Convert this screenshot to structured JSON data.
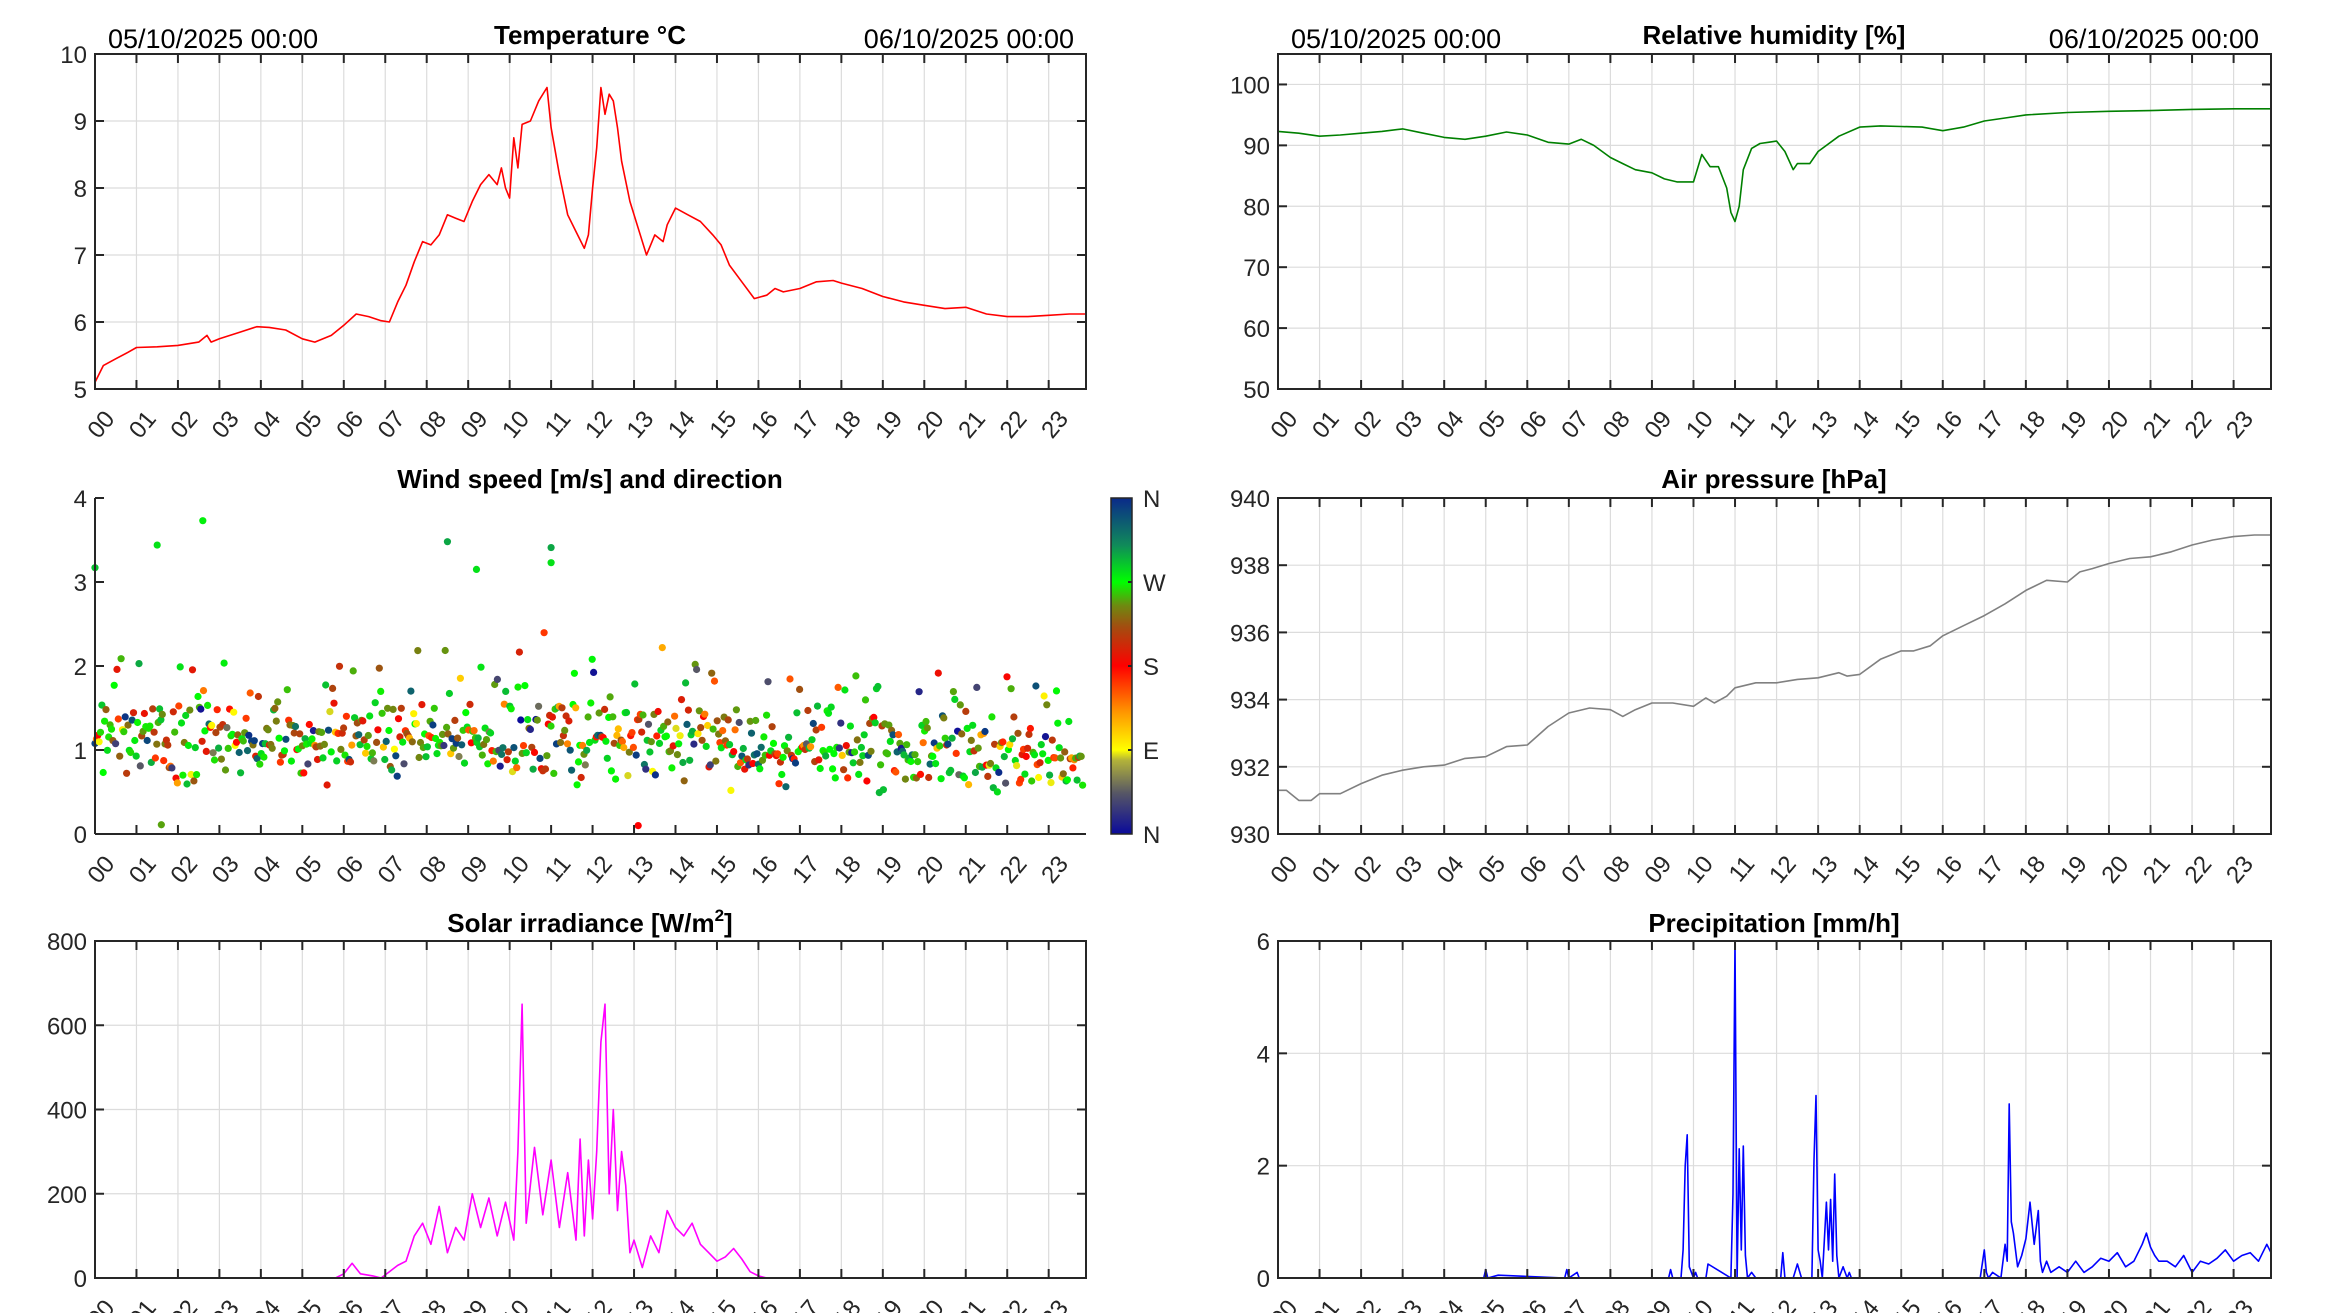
{
  "page": {
    "start_stamp": "05/10/2025 00:00",
    "end_stamp": "06/10/2025 00:00"
  },
  "x_tick_labels": [
    "00",
    "01",
    "02",
    "03",
    "04",
    "05",
    "06",
    "07",
    "08",
    "09",
    "10",
    "11",
    "12",
    "13",
    "14",
    "15",
    "16",
    "17",
    "18",
    "19",
    "20",
    "21",
    "22",
    "23"
  ],
  "chart_data": [
    {
      "id": "temperature",
      "type": "line",
      "title": "Temperature °C",
      "xlabel": "hour",
      "ylabel": "",
      "xlim": [
        0,
        23.9
      ],
      "ylim": [
        5,
        10
      ],
      "yticks": [
        5,
        6,
        7,
        8,
        9,
        10
      ],
      "grid": true,
      "color": "#ff0000",
      "x": [
        0,
        0.2,
        0.5,
        0.8,
        1.0,
        1.5,
        2.0,
        2.5,
        2.7,
        2.8,
        3.0,
        3.5,
        3.9,
        4.2,
        4.6,
        5.0,
        5.3,
        5.7,
        6.0,
        6.3,
        6.6,
        6.9,
        7.1,
        7.3,
        7.5,
        7.7,
        7.9,
        8.1,
        8.3,
        8.5,
        8.7,
        8.9,
        9.1,
        9.3,
        9.5,
        9.7,
        9.8,
        9.9,
        10.0,
        10.1,
        10.2,
        10.3,
        10.5,
        10.7,
        10.9,
        11.0,
        11.2,
        11.4,
        11.6,
        11.8,
        11.9,
        12.0,
        12.1,
        12.2,
        12.3,
        12.4,
        12.5,
        12.6,
        12.7,
        12.9,
        13.1,
        13.3,
        13.5,
        13.7,
        13.8,
        14.0,
        14.3,
        14.6,
        14.9,
        15.1,
        15.3,
        15.6,
        15.9,
        16.2,
        16.4,
        16.6,
        17.0,
        17.4,
        17.8,
        18.0,
        18.5,
        19.0,
        19.5,
        20.0,
        20.5,
        21.0,
        21.5,
        22.0,
        22.5,
        23.0,
        23.5,
        23.9
      ],
      "y": [
        5.1,
        5.35,
        5.45,
        5.55,
        5.62,
        5.63,
        5.65,
        5.7,
        5.8,
        5.7,
        5.75,
        5.85,
        5.93,
        5.92,
        5.88,
        5.75,
        5.7,
        5.8,
        5.95,
        6.12,
        6.08,
        6.02,
        6.0,
        6.3,
        6.55,
        6.9,
        7.2,
        7.15,
        7.3,
        7.6,
        7.55,
        7.5,
        7.8,
        8.05,
        8.2,
        8.05,
        8.3,
        8.0,
        7.85,
        8.75,
        8.3,
        8.95,
        9.0,
        9.3,
        9.5,
        8.9,
        8.2,
        7.6,
        7.35,
        7.1,
        7.3,
        8.0,
        8.6,
        9.5,
        9.1,
        9.4,
        9.3,
        8.9,
        8.4,
        7.8,
        7.4,
        7.0,
        7.3,
        7.2,
        7.45,
        7.7,
        7.6,
        7.5,
        7.3,
        7.15,
        6.85,
        6.6,
        6.35,
        6.4,
        6.5,
        6.45,
        6.5,
        6.6,
        6.62,
        6.58,
        6.5,
        6.38,
        6.3,
        6.25,
        6.2,
        6.22,
        6.12,
        6.08,
        6.08,
        6.1,
        6.12,
        6.12
      ]
    },
    {
      "id": "humidity",
      "type": "line",
      "title": "Relative humidity [%]",
      "xlabel": "hour",
      "ylabel": "",
      "xlim": [
        0,
        23.9
      ],
      "ylim": [
        50,
        105
      ],
      "yticks": [
        50,
        60,
        70,
        80,
        90,
        100
      ],
      "grid": true,
      "color": "#008000",
      "x": [
        0,
        0.5,
        1.0,
        1.5,
        2.0,
        2.5,
        3.0,
        3.5,
        4.0,
        4.5,
        5.0,
        5.5,
        6.0,
        6.5,
        7.0,
        7.3,
        7.6,
        8.0,
        8.3,
        8.6,
        9.0,
        9.3,
        9.6,
        10.0,
        10.2,
        10.4,
        10.6,
        10.8,
        10.9,
        11.0,
        11.1,
        11.2,
        11.4,
        11.6,
        11.8,
        12.0,
        12.2,
        12.4,
        12.5,
        12.8,
        13.0,
        13.5,
        14.0,
        14.5,
        15.0,
        15.5,
        16.0,
        16.5,
        17.0,
        17.5,
        18.0,
        19.0,
        20.0,
        21.0,
        22.0,
        23.0,
        23.9
      ],
      "y": [
        92.3,
        92.0,
        91.5,
        91.7,
        92.0,
        92.3,
        92.7,
        92.0,
        91.3,
        91.0,
        91.5,
        92.2,
        91.7,
        90.5,
        90.2,
        91.0,
        90.0,
        88.0,
        87.0,
        86.0,
        85.5,
        84.5,
        84.0,
        84.0,
        88.5,
        86.5,
        86.5,
        83.0,
        79.0,
        77.5,
        80.0,
        86.0,
        89.5,
        90.3,
        90.5,
        90.7,
        89.0,
        86.0,
        87.0,
        87.0,
        89.0,
        91.5,
        93.0,
        93.2,
        93.1,
        93.0,
        92.4,
        93.0,
        94.0,
        94.5,
        95.0,
        95.4,
        95.6,
        95.7,
        95.9,
        96.0,
        96.0
      ]
    },
    {
      "id": "wind",
      "type": "scatter",
      "title": "Wind speed [m/s] and direction",
      "xlabel": "hour",
      "ylabel": "",
      "xlim": [
        0,
        23.9
      ],
      "ylim": [
        0,
        4
      ],
      "yticks": [
        0,
        1,
        2,
        3,
        4
      ],
      "grid": false,
      "colorbar": {
        "labels": [
          "N",
          "E",
          "S",
          "W",
          "N"
        ],
        "range_deg": [
          0,
          360
        ]
      },
      "n_points": 1440,
      "speed_mean": 1.05,
      "notable_points": [
        {
          "x": 0.0,
          "y": 3.17,
          "dir": 290
        },
        {
          "x": 1.5,
          "y": 3.44,
          "dir": 280
        },
        {
          "x": 2.6,
          "y": 3.73,
          "dir": 275
        },
        {
          "x": 8.5,
          "y": 3.48,
          "dir": 300
        },
        {
          "x": 9.2,
          "y": 3.15,
          "dir": 280
        },
        {
          "x": 11.0,
          "y": 3.41,
          "dir": 300
        },
        {
          "x": 11.0,
          "y": 3.23,
          "dir": 280
        },
        {
          "x": 13.1,
          "y": 0.1,
          "dir": 180
        },
        {
          "x": 1.6,
          "y": 0.11,
          "dir": 250
        }
      ]
    },
    {
      "id": "pressure",
      "type": "line",
      "title": "Air pressure [hPa]",
      "xlabel": "hour",
      "ylabel": "",
      "xlim": [
        0,
        23.9
      ],
      "ylim": [
        930,
        940
      ],
      "yticks": [
        930,
        932,
        934,
        936,
        938,
        940
      ],
      "grid": true,
      "color": "#808080",
      "x": [
        0,
        0.2,
        0.5,
        0.8,
        1.0,
        1.5,
        2.0,
        2.5,
        3.0,
        3.5,
        4.0,
        4.5,
        5.0,
        5.5,
        6.0,
        6.5,
        7.0,
        7.5,
        8.0,
        8.3,
        8.6,
        9.0,
        9.5,
        10.0,
        10.3,
        10.5,
        10.8,
        11.0,
        11.5,
        12.0,
        12.5,
        13.0,
        13.5,
        13.7,
        14.0,
        14.5,
        15.0,
        15.3,
        15.7,
        16.0,
        16.5,
        17.0,
        17.5,
        18.0,
        18.5,
        19.0,
        19.3,
        19.6,
        20.0,
        20.5,
        21.0,
        21.5,
        22.0,
        22.5,
        23.0,
        23.5,
        23.9
      ],
      "y": [
        931.3,
        931.3,
        931.0,
        931.0,
        931.2,
        931.2,
        931.5,
        931.75,
        931.9,
        932.0,
        932.05,
        932.25,
        932.3,
        932.6,
        932.65,
        933.2,
        933.6,
        933.75,
        933.7,
        933.5,
        933.7,
        933.9,
        933.9,
        933.8,
        934.05,
        933.9,
        934.1,
        934.35,
        934.5,
        934.5,
        934.6,
        934.65,
        934.8,
        934.7,
        934.75,
        935.2,
        935.45,
        935.45,
        935.6,
        935.9,
        936.2,
        936.5,
        936.85,
        937.25,
        937.55,
        937.5,
        937.8,
        937.9,
        938.05,
        938.2,
        938.25,
        938.4,
        938.6,
        938.75,
        938.85,
        938.9,
        938.9
      ]
    },
    {
      "id": "solar",
      "type": "line",
      "title": "Solar irradiance [W/m2]",
      "title_main": "Solar irradiance [W/m",
      "title_sup": "2",
      "title_end": "]",
      "xlabel": "hour",
      "ylabel": "",
      "xlim": [
        0,
        23.9
      ],
      "ylim": [
        0,
        800
      ],
      "yticks": [
        0,
        200,
        400,
        600,
        800
      ],
      "grid": true,
      "color": "#ff00ff",
      "x": [
        0,
        5.8,
        6.0,
        6.2,
        6.4,
        6.7,
        6.9,
        7.1,
        7.3,
        7.5,
        7.7,
        7.9,
        8.1,
        8.3,
        8.5,
        8.7,
        8.9,
        9.1,
        9.3,
        9.5,
        9.7,
        9.9,
        10.1,
        10.2,
        10.3,
        10.4,
        10.6,
        10.8,
        11.0,
        11.2,
        11.4,
        11.6,
        11.7,
        11.8,
        11.9,
        12.0,
        12.1,
        12.2,
        12.3,
        12.4,
        12.5,
        12.6,
        12.7,
        12.8,
        12.9,
        13.0,
        13.2,
        13.4,
        13.6,
        13.8,
        14.0,
        14.2,
        14.4,
        14.6,
        14.8,
        15.0,
        15.2,
        15.4,
        15.6,
        15.8,
        16.0,
        16.2,
        16.4,
        23.9
      ],
      "y": [
        0,
        0,
        10,
        35,
        10,
        5,
        0,
        15,
        30,
        40,
        100,
        130,
        80,
        170,
        60,
        120,
        90,
        200,
        120,
        190,
        100,
        180,
        90,
        300,
        650,
        130,
        310,
        150,
        280,
        120,
        250,
        90,
        330,
        100,
        280,
        140,
        300,
        560,
        650,
        200,
        400,
        160,
        300,
        220,
        60,
        90,
        25,
        100,
        60,
        160,
        120,
        100,
        130,
        80,
        60,
        40,
        50,
        70,
        45,
        15,
        5,
        0,
        0,
        0
      ]
    },
    {
      "id": "precipitation",
      "type": "line",
      "title": "Precipitation [mm/h]",
      "xlabel": "hour",
      "ylabel": "",
      "xlim": [
        0,
        23.9
      ],
      "ylim": [
        0,
        6
      ],
      "yticks": [
        0,
        2,
        4,
        6
      ],
      "grid": true,
      "color": "#0000ff",
      "x": [
        0,
        4.95,
        5.0,
        5.05,
        5.3,
        6.9,
        6.95,
        7.0,
        7.2,
        7.25,
        9.4,
        9.45,
        9.5,
        9.7,
        9.75,
        9.8,
        9.85,
        9.9,
        10.0,
        10.05,
        10.1,
        10.3,
        10.35,
        10.9,
        10.95,
        11.0,
        11.05,
        11.1,
        11.15,
        11.2,
        11.25,
        11.3,
        11.4,
        11.5,
        12.1,
        12.15,
        12.2,
        12.4,
        12.5,
        12.6,
        12.85,
        12.9,
        12.95,
        13.0,
        13.05,
        13.1,
        13.2,
        13.25,
        13.3,
        13.35,
        13.4,
        13.45,
        13.5,
        13.6,
        13.7,
        13.75,
        13.8,
        16.9,
        17.0,
        17.05,
        17.1,
        17.2,
        17.4,
        17.5,
        17.55,
        17.6,
        17.65,
        17.7,
        17.8,
        17.9,
        18.0,
        18.1,
        18.2,
        18.3,
        18.35,
        18.4,
        18.5,
        18.6,
        18.8,
        19.0,
        19.2,
        19.4,
        19.6,
        19.8,
        20.0,
        20.2,
        20.4,
        20.6,
        20.8,
        20.9,
        21.0,
        21.1,
        21.2,
        21.4,
        21.6,
        21.8,
        22.0,
        22.2,
        22.4,
        22.6,
        22.8,
        23.0,
        23.2,
        23.4,
        23.6,
        23.8,
        23.9
      ],
      "y": [
        0,
        0,
        0.15,
        0,
        0.05,
        0,
        0.15,
        0,
        0.1,
        0,
        0,
        0.15,
        0,
        0,
        0.5,
        2.0,
        2.55,
        0.2,
        0,
        0.1,
        0,
        0,
        0.25,
        0,
        1.5,
        6.0,
        0,
        2.3,
        0.5,
        2.35,
        0.4,
        0,
        0.1,
        0,
        0,
        0.45,
        0,
        0,
        0.25,
        0,
        0,
        2.1,
        3.25,
        0.5,
        0.3,
        0,
        1.35,
        0.5,
        1.4,
        0.3,
        1.85,
        0.4,
        0,
        0.2,
        0,
        0.1,
        0,
        0,
        0.5,
        0.1,
        0,
        0.1,
        0,
        0.6,
        0.3,
        3.1,
        1.0,
        0.8,
        0.2,
        0.4,
        0.7,
        1.35,
        0.6,
        1.2,
        0.3,
        0.1,
        0.3,
        0.1,
        0.2,
        0.1,
        0.3,
        0.1,
        0.2,
        0.35,
        0.3,
        0.45,
        0.2,
        0.3,
        0.6,
        0.8,
        0.55,
        0.4,
        0.3,
        0.3,
        0.2,
        0.4,
        0.1,
        0.3,
        0.25,
        0.35,
        0.5,
        0.3,
        0.4,
        0.45,
        0.3,
        0.6,
        0.45
      ]
    }
  ]
}
